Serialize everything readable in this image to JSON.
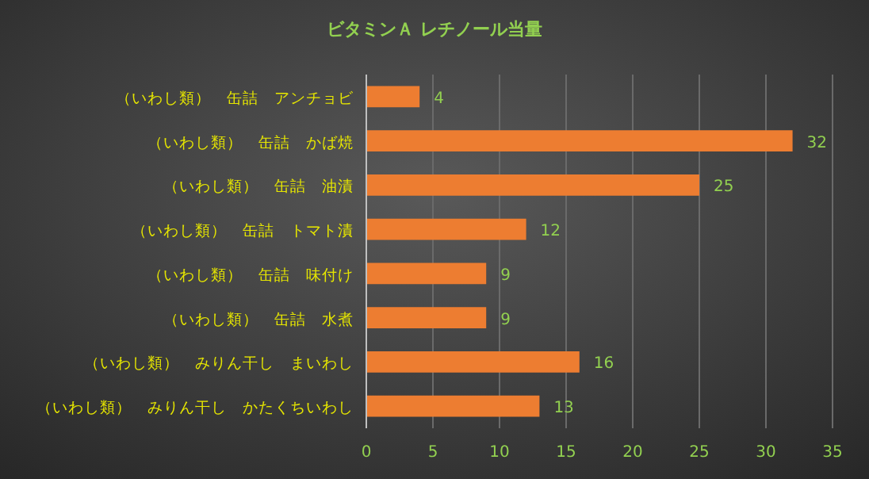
{
  "chart_data": {
    "type": "bar",
    "orientation": "horizontal",
    "title": "ビタミンＡ レチノール当量",
    "categories": [
      "（いわし類）　缶詰　アンチョビ",
      "（いわし類）　缶詰　かば焼",
      "（いわし類）　缶詰　油漬",
      "（いわし類）　缶詰　トマト漬",
      "（いわし類）　缶詰　味付け",
      "（いわし類）　缶詰　水煮",
      "（いわし類）　みりん干し　まいわし",
      "（いわし類）　みりん干し　かたくちいわし"
    ],
    "values": [
      4,
      32,
      25,
      12,
      9,
      9,
      16,
      13
    ],
    "color": "#ed7d31",
    "xlim": [
      0,
      35
    ],
    "xticks": [
      0,
      5,
      10,
      15,
      20,
      25,
      30,
      35
    ],
    "grid": "x",
    "data_labels": true
  }
}
